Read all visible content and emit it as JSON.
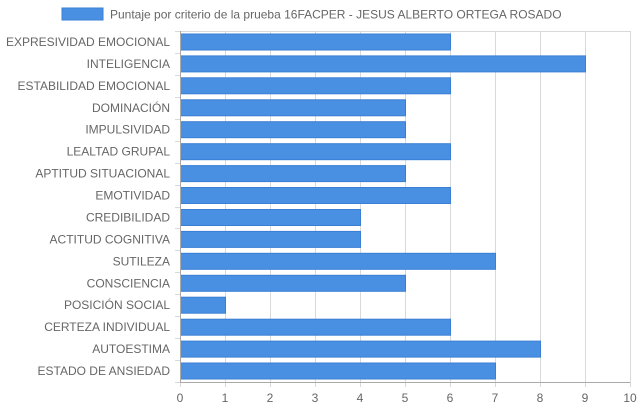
{
  "chart_data": {
    "type": "bar",
    "orientation": "horizontal",
    "legend": {
      "position": "top",
      "entries": [
        "Puntaje por criterio de la prueba 16FACPER - JESUS ALBERTO ORTEGA ROSADO"
      ]
    },
    "categories": [
      "EXPRESIVIDAD EMOCIONAL",
      "INTELIGENCIA",
      "ESTABILIDAD EMOCIONAL",
      "DOMINACIÓN",
      "IMPULSIVIDAD",
      "LEALTAD GRUPAL",
      "APTITUD SITUACIONAL",
      "EMOTIVIDAD",
      "CREDIBILIDAD",
      "ACTITUD COGNITIVA",
      "SUTILEZA",
      "CONSCIENCIA",
      "POSICIÓN SOCIAL",
      "CERTEZA INDIVIDUAL",
      "AUTOESTIMA",
      "ESTADO DE ANSIEDAD"
    ],
    "series": [
      {
        "name": "Puntaje por criterio de la prueba 16FACPER - JESUS ALBERTO ORTEGA ROSADO",
        "values": [
          6,
          9,
          6,
          5,
          5,
          6,
          5,
          6,
          4,
          4,
          7,
          5,
          1,
          6,
          8,
          7
        ],
        "color": "#4a90e2",
        "border_color": "#3a7fd5"
      }
    ],
    "x_ticks": [
      "0",
      "1",
      "2",
      "3",
      "4",
      "5",
      "6",
      "7",
      "8",
      "9",
      "10"
    ],
    "xlim": [
      0,
      10
    ],
    "grid": true,
    "gridline_color": "#d9d9d9",
    "axis_line_color": "#aaaaaa"
  }
}
